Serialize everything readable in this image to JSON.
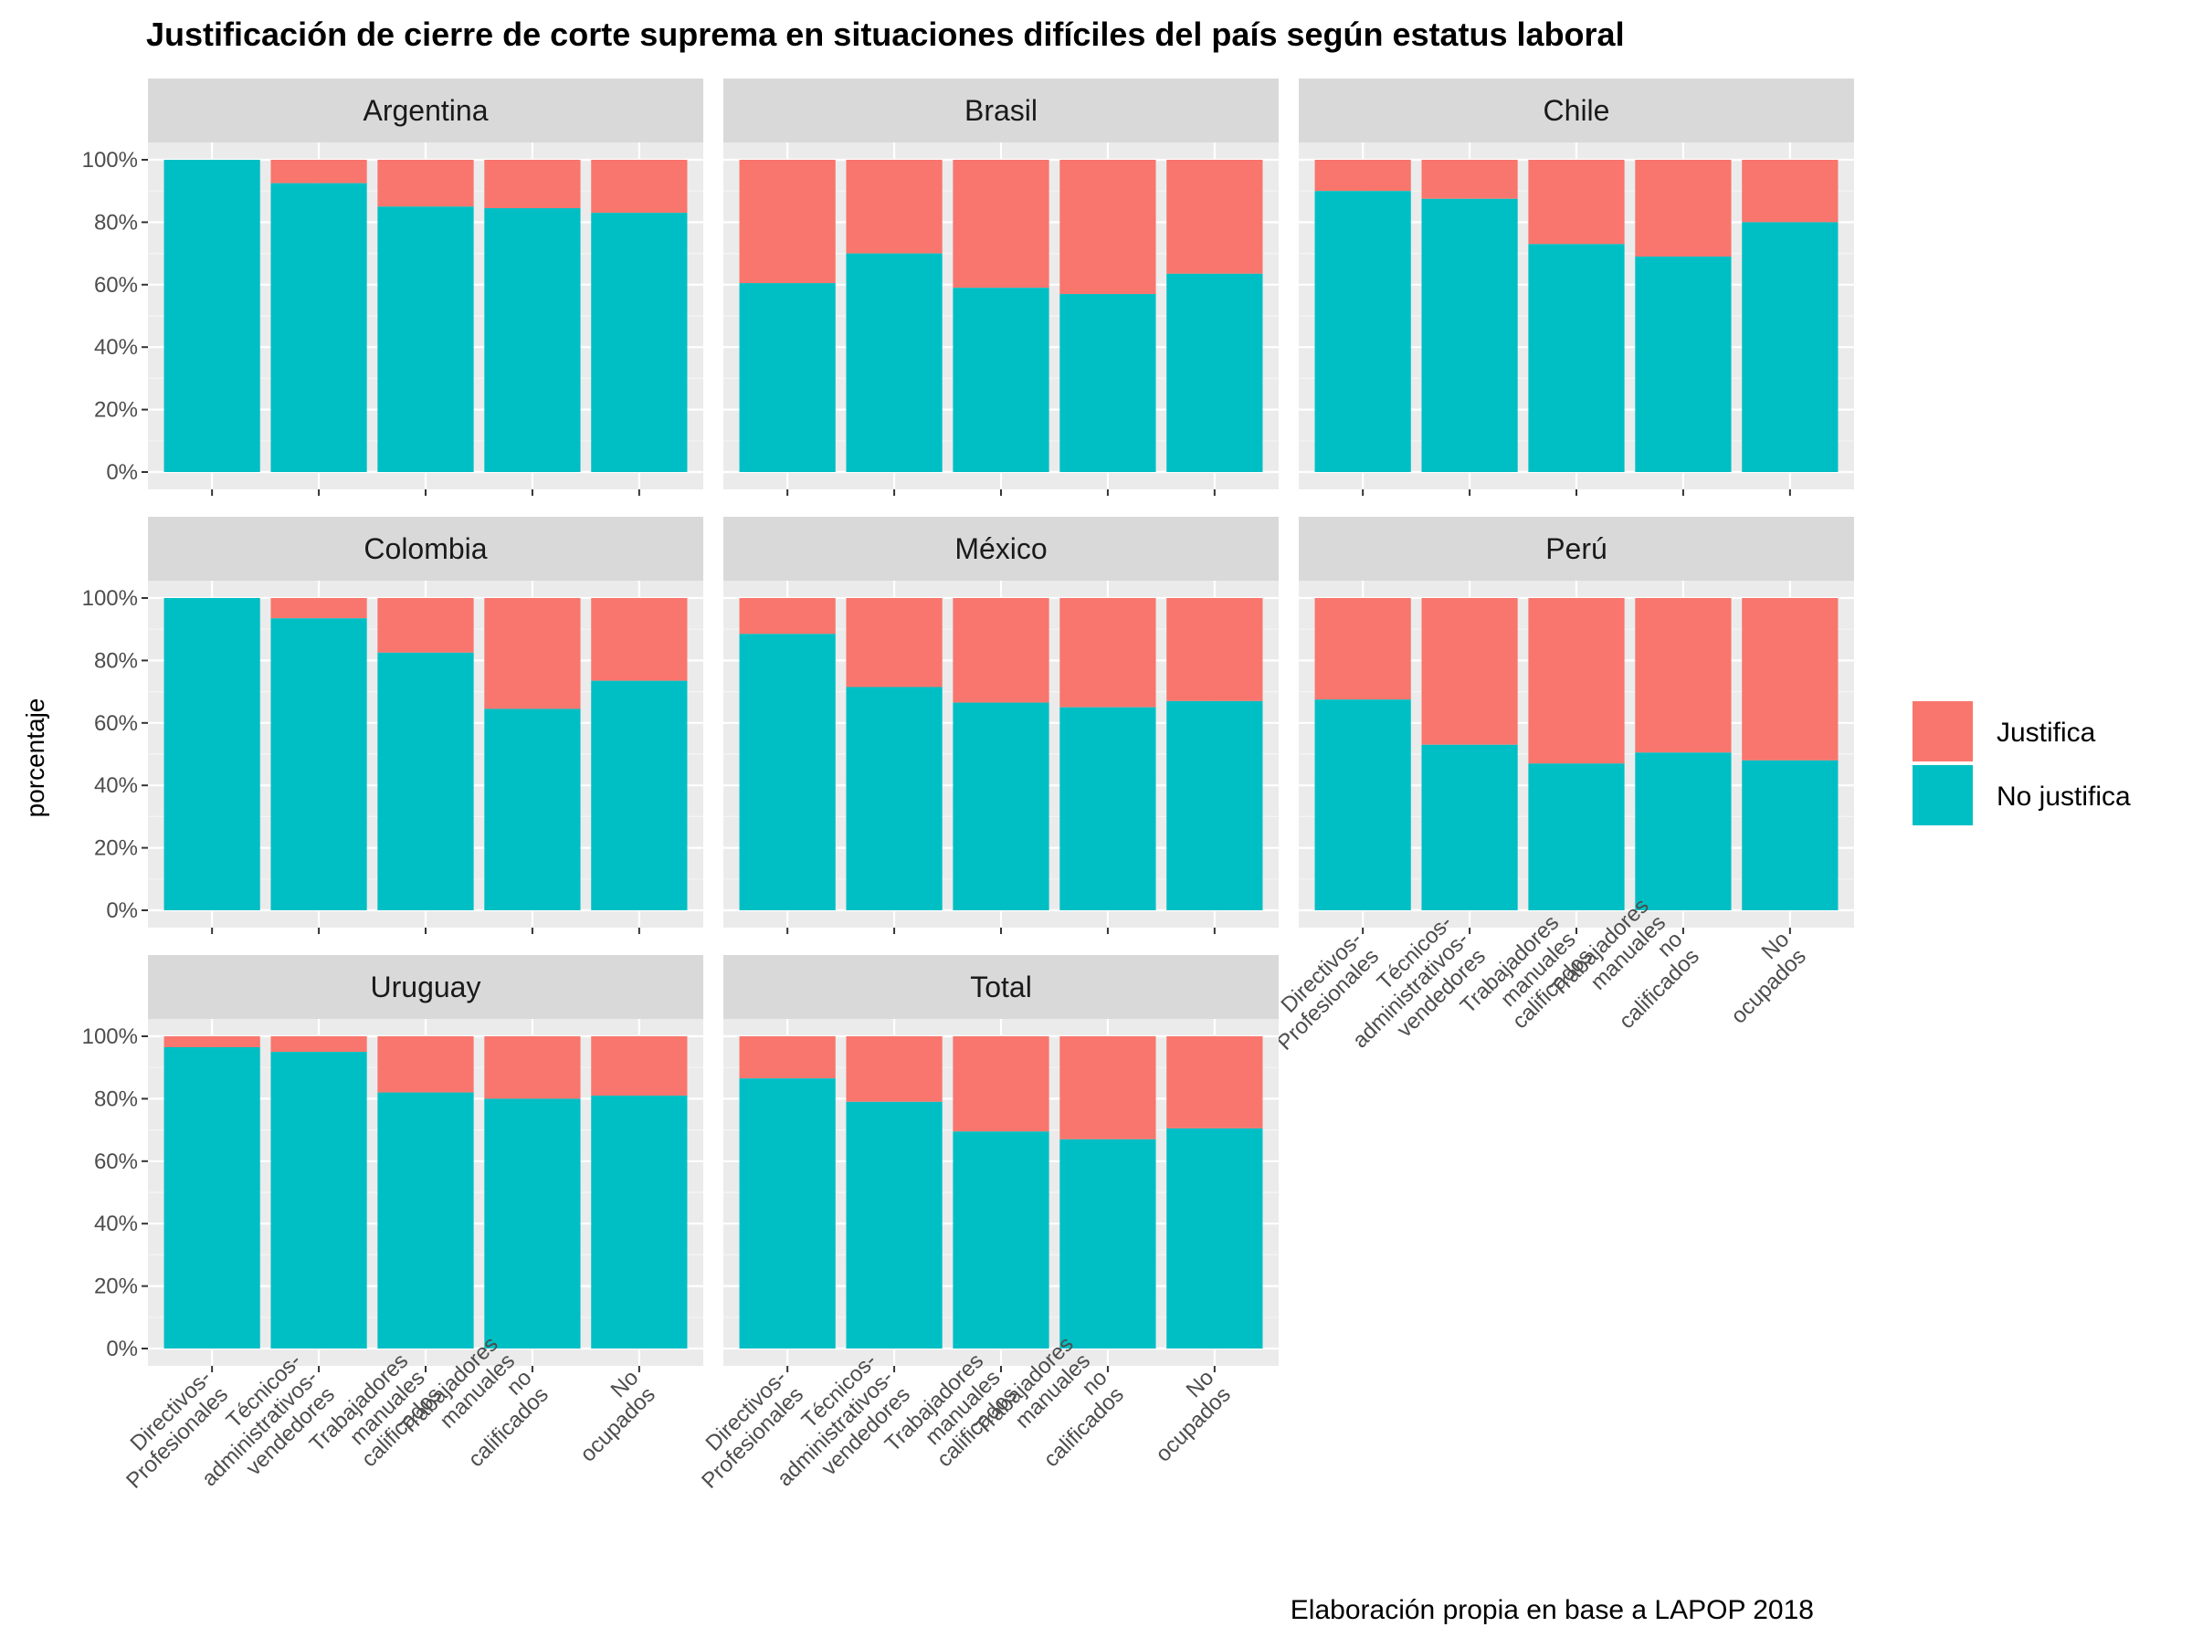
{
  "chart_data": {
    "type": "bar",
    "stacked": true,
    "title": "Justificación de cierre de corte suprema en situaciones difíciles del país según estatus laboral",
    "ylabel": "porcentaje",
    "xlabel": "",
    "caption": "Elaboración propia en base a LAPOP 2018",
    "ylim": [
      0,
      100
    ],
    "yticks": [
      "0%",
      "20%",
      "40%",
      "60%",
      "80%",
      "100%"
    ],
    "categories": [
      [
        "Directivos-",
        "Profesionales"
      ],
      [
        "Técnicos-",
        "administrativos-",
        "vendedores"
      ],
      [
        "Trabajadores",
        "manuales",
        "calificados"
      ],
      [
        "Trabajadores",
        "manuales",
        "no",
        "calificados"
      ],
      [
        "No",
        "ocupados"
      ]
    ],
    "legend": {
      "placement": "right",
      "entries": [
        {
          "name": "Justifica",
          "color": "#F8766D"
        },
        {
          "name": "No justifica",
          "color": "#00BFC4"
        }
      ]
    },
    "panels": [
      {
        "name": "Argentina",
        "no_justifica": [
          100,
          92.5,
          85,
          84.5,
          83
        ]
      },
      {
        "name": "Brasil",
        "no_justifica": [
          60.5,
          70,
          59,
          57,
          63.5
        ]
      },
      {
        "name": "Chile",
        "no_justifica": [
          90,
          87.5,
          73,
          69,
          80
        ]
      },
      {
        "name": "Colombia",
        "no_justifica": [
          100,
          93.5,
          82.5,
          64.5,
          73.5
        ]
      },
      {
        "name": "México",
        "no_justifica": [
          88.5,
          71.5,
          66.5,
          65,
          67
        ]
      },
      {
        "name": "Perú",
        "no_justifica": [
          67.5,
          53,
          47,
          50.5,
          48
        ]
      },
      {
        "name": "Uruguay",
        "no_justifica": [
          96.5,
          95,
          82,
          80,
          81
        ]
      },
      {
        "name": "Total",
        "no_justifica": [
          86.5,
          79,
          69.5,
          67,
          70.5
        ]
      }
    ]
  }
}
